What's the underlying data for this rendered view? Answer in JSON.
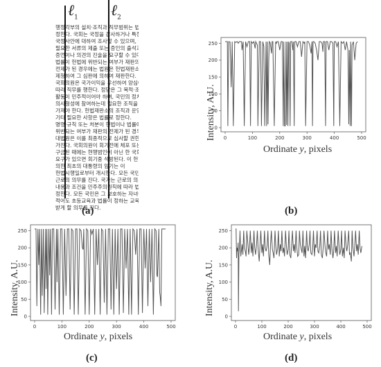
{
  "panel_a": {
    "label": "(a)",
    "line1_label": "ℓ",
    "line1_sub": "1",
    "line2_label": "ℓ",
    "line2_sub": "2",
    "text_lines": [
      "행정각부의 설치·조직과 직무범위는 법률",
      "정한다. 국회는 국정을 감사하거나 특정한",
      "국정사안에 대하여 조사할 수 있으며, 이에",
      "필요한 서류의 제출 또는 증인의 출석과",
      "증언이나 의견의 진술을 요구할 수 있다.",
      "법률이 헌법에 위반되는 여부가 재판의",
      "전제가 된 경우에는 법원은 헌법재판소에",
      "제청하여 그 심판에 의하여 재판한다.",
      "국회의원은 국가이익을 우선하여 양심에",
      "따라 직무를 행한다. 정당은 그 목적·조직과",
      "활동이 민주적이어야 하며, 국민의 정치적",
      "의사형성에 참여하는데 필요한 조직을",
      "가져야 한다. 헌법재판소의 조직과 운영",
      "기타 필요한 사항은 법률로 정한다.",
      "명령·규칙 또는 처분이 헌법이나 법률에",
      "위반되는 여부가 재판의 전제가 된 경우에는",
      "대법원은 이를 최종적으로 심사할 권한을",
      "가진다. 국회의원이 회기전에 체포 또는",
      "구금된 때에는 현행범인이 아닌 한 국회의",
      "요구가 있으면 회기중 석방된다. 이 헌법에",
      "의한 최초의 대통령의 임기는 이",
      "헌법시행일로부터 개시한다. 모든 국민은",
      "근로의 의무를 진다. 국가는 근로의 의무의",
      "내용과 조건을 민주주의원칙에 따라 법률로",
      "정한다. 모든 국민은 그 보호하는 자녀에게",
      "적어도 초등교육과 법률이 정하는 교육을",
      "받게 할 의무를 진다."
    ]
  },
  "chart_data": [
    {
      "type": "line",
      "panel": "b",
      "label": "(b)",
      "xlabel": "Ordinate",
      "xlabel_var": "y",
      "xlabel_unit": ", pixels",
      "ylabel": "Intensity, A.U.",
      "xlim": [
        0,
        500
      ],
      "ylim": [
        0,
        255
      ],
      "xticks": [
        0,
        100,
        200,
        300,
        400,
        500
      ],
      "yticks": [
        0,
        50,
        100,
        150,
        200,
        250
      ],
      "series": [
        {
          "x": [
            0,
            8,
            10,
            13,
            18,
            22,
            26,
            30,
            35,
            38,
            45,
            48,
            52,
            60,
            62,
            66,
            70,
            75,
            80,
            85,
            90,
            93,
            96,
            100,
            105,
            110,
            112,
            118,
            120,
            125,
            130,
            133,
            138,
            142,
            145,
            150,
            152,
            155,
            157,
            160,
            162,
            165,
            170,
            172,
            175,
            180,
            185,
            188,
            190,
            195,
            200,
            205,
            210,
            213,
            215,
            218,
            220,
            223,
            225,
            228,
            230,
            233,
            235,
            238,
            240,
            245,
            248,
            250,
            253,
            255,
            260,
            265,
            270,
            275,
            280,
            285,
            290,
            292,
            295,
            300,
            305,
            310,
            315,
            318,
            320,
            322,
            325,
            330,
            335,
            340,
            345,
            350,
            355,
            358,
            360,
            365,
            368,
            370,
            375,
            380,
            385,
            390,
            395,
            398,
            400,
            405,
            410,
            415,
            420,
            425,
            430,
            435,
            440,
            445,
            450,
            453,
            455,
            458,
            460,
            463,
            465,
            470,
            475,
            480,
            485
          ],
          "y": [
            255,
            255,
            5,
            255,
            254,
            120,
            255,
            5,
            255,
            253,
            255,
            250,
            255,
            255,
            230,
            255,
            5,
            255,
            240,
            255,
            255,
            5,
            255,
            250,
            255,
            235,
            255,
            245,
            5,
            255,
            255,
            5,
            255,
            240,
            5,
            255,
            5,
            255,
            10,
            200,
            255,
            252,
            220,
            255,
            255,
            5,
            255,
            250,
            255,
            255,
            230,
            255,
            255,
            5,
            255,
            5,
            5,
            255,
            8,
            255,
            5,
            255,
            250,
            5,
            255,
            255,
            230,
            255,
            5,
            255,
            255,
            240,
            255,
            255,
            210,
            255,
            250,
            255,
            5,
            255,
            255,
            245,
            220,
            255,
            5,
            255,
            255,
            250,
            230,
            200,
            255,
            255,
            250,
            225,
            255,
            255,
            5,
            255,
            255,
            230,
            255,
            255,
            250,
            5,
            255,
            255,
            240,
            255,
            5,
            255,
            250,
            255,
            230,
            255,
            230,
            10,
            230,
            5,
            255,
            5,
            245,
            255,
            200,
            250,
            255
          ]
        }
      ]
    },
    {
      "type": "line",
      "panel": "c",
      "label": "(c)",
      "xlabel": "Ordinate",
      "xlabel_var": "y",
      "xlabel_unit": ", pixels",
      "ylabel": "Intensity, A.U.",
      "xlim": [
        0,
        500
      ],
      "ylim": [
        0,
        255
      ],
      "xticks": [
        0,
        100,
        200,
        300,
        400,
        500
      ],
      "yticks": [
        0,
        50,
        100,
        150,
        200,
        250
      ],
      "series": [
        {
          "x": [
            0,
            5,
            8,
            12,
            15,
            18,
            22,
            25,
            28,
            32,
            35,
            40,
            42,
            45,
            48,
            52,
            55,
            58,
            62,
            65,
            70,
            75,
            80,
            82,
            85,
            90,
            95,
            100,
            105,
            110,
            115,
            120,
            125,
            130,
            135,
            140,
            145,
            150,
            155,
            160,
            165,
            170,
            175,
            178,
            180,
            185,
            190,
            195,
            200,
            205,
            210,
            215,
            220,
            225,
            230,
            235,
            240,
            245,
            250,
            255,
            260,
            265,
            270,
            275,
            280,
            285,
            290,
            295,
            300,
            305,
            310,
            315,
            320,
            325,
            330,
            335,
            340,
            345,
            350,
            355,
            360,
            365,
            370,
            375,
            380,
            385,
            390,
            395,
            400,
            405,
            410,
            415,
            420,
            425,
            430,
            435,
            440,
            445,
            448,
            450,
            455,
            458,
            460,
            463,
            466,
            470,
            475,
            480
          ],
          "y": [
            255,
            255,
            30,
            255,
            150,
            255,
            5,
            255,
            60,
            255,
            10,
            255,
            80,
            255,
            5,
            255,
            120,
            255,
            5,
            255,
            255,
            20,
            255,
            100,
            255,
            5,
            255,
            255,
            5,
            255,
            60,
            255,
            255,
            20,
            255,
            250,
            5,
            255,
            255,
            5,
            255,
            250,
            200,
            195,
            255,
            5,
            255,
            250,
            5,
            255,
            240,
            255,
            5,
            255,
            150,
            255,
            5,
            255,
            250,
            40,
            255,
            5,
            255,
            255,
            20,
            255,
            5,
            255,
            80,
            255,
            5,
            255,
            255,
            10,
            255,
            140,
            255,
            5,
            255,
            5,
            255,
            250,
            180,
            255,
            5,
            255,
            255,
            10,
            255,
            140,
            255,
            30,
            255,
            100,
            255,
            5,
            255,
            250,
            120,
            115,
            255,
            70,
            60,
            30,
            255,
            255,
            255,
            255
          ]
        }
      ]
    },
    {
      "type": "line",
      "panel": "d",
      "label": "(d)",
      "xlabel": "Ordinate",
      "xlabel_var": "y",
      "xlabel_unit": ", pixels",
      "ylabel": "Intensity, A.U.",
      "xlim": [
        0,
        500
      ],
      "ylim": [
        0,
        255
      ],
      "xticks": [
        0,
        100,
        200,
        300,
        400,
        500
      ],
      "yticks": [
        0,
        50,
        100,
        150,
        200,
        250
      ],
      "series": [
        {
          "x": [
            0,
            2,
            4,
            6,
            8,
            10,
            11,
            13,
            15,
            17,
            20,
            25,
            28,
            31,
            34,
            37,
            40,
            43,
            47,
            50,
            53,
            56,
            60,
            63,
            66,
            70,
            73,
            76,
            80,
            83,
            86,
            90,
            93,
            96,
            100,
            103,
            106,
            110,
            113,
            116,
            120,
            123,
            126,
            130,
            133,
            136,
            140,
            143,
            146,
            150,
            153,
            156,
            160,
            163,
            166,
            170,
            173,
            176,
            180,
            183,
            186,
            190,
            193,
            196,
            200,
            203,
            206,
            210,
            213,
            216,
            220,
            223,
            226,
            230,
            233,
            236,
            240,
            243,
            246,
            250,
            253,
            256,
            260,
            263,
            266,
            270,
            273,
            276,
            280,
            283,
            286,
            290,
            293,
            296,
            300,
            303,
            306,
            310,
            313,
            316,
            320,
            323,
            326,
            330,
            333,
            336,
            340,
            343,
            346,
            350,
            353,
            356,
            360,
            363,
            366,
            370,
            373,
            376,
            380,
            383,
            386,
            390,
            393,
            396,
            400,
            403,
            406,
            410,
            413,
            416,
            420,
            423,
            426,
            430,
            433,
            436,
            440,
            443,
            446,
            450,
            453,
            456,
            460,
            463,
            466,
            470,
            473,
            476,
            480
          ],
          "y": [
            255,
            255,
            170,
            200,
            190,
            215,
            15,
            180,
            205,
            250,
            175,
            210,
            180,
            250,
            200,
            190,
            175,
            250,
            210,
            180,
            200,
            250,
            185,
            215,
            175,
            250,
            200,
            180,
            210,
            250,
            195,
            160,
            205,
            250,
            185,
            210,
            175,
            250,
            200,
            190,
            205,
            250,
            180,
            150,
            210,
            250,
            195,
            185,
            170,
            250,
            205,
            180,
            200,
            250,
            175,
            210,
            190,
            250,
            185,
            200,
            175,
            250,
            210,
            180,
            195,
            250,
            180,
            170,
            205,
            250,
            190,
            210,
            185,
            250,
            200,
            175,
            180,
            250,
            210,
            195,
            185,
            250,
            175,
            205,
            170,
            250,
            200,
            190,
            210,
            250,
            185,
            180,
            195,
            250,
            175,
            210,
            200,
            250,
            190,
            185,
            205,
            250,
            180,
            170,
            200,
            250,
            205,
            185,
            175,
            250,
            195,
            210,
            180,
            250,
            200,
            170,
            190,
            250,
            185,
            205,
            175,
            250,
            210,
            180,
            195,
            250,
            175,
            200,
            170,
            250,
            205,
            190,
            210,
            250,
            180,
            185,
            160,
            250,
            200,
            175,
            205,
            250,
            190,
            210,
            180,
            250,
            200,
            185,
            205
          ]
        }
      ]
    }
  ]
}
